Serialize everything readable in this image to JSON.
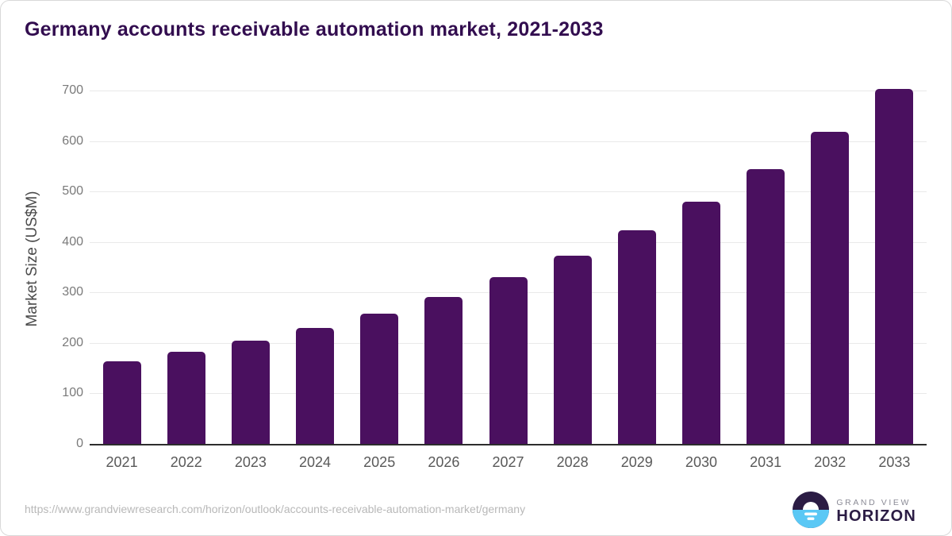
{
  "title": "Germany accounts receivable automation market, 2021-2033",
  "chart_data": {
    "type": "bar",
    "title": "Germany accounts receivable automation market, 2021-2033",
    "categories": [
      "2021",
      "2022",
      "2023",
      "2024",
      "2025",
      "2026",
      "2027",
      "2028",
      "2029",
      "2030",
      "2031",
      "2032",
      "2033"
    ],
    "values": [
      164,
      183,
      205,
      230,
      258,
      291,
      330,
      373,
      423,
      480,
      545,
      619,
      703
    ],
    "xlabel": "",
    "ylabel": "Market Size (US$M)",
    "ylim": [
      0,
      700
    ],
    "yticks": [
      0,
      100,
      200,
      300,
      400,
      500,
      600,
      700
    ],
    "grid": "horizontal",
    "legend": "none",
    "bar_color": "#4a105f"
  },
  "footer": {
    "source_url": "https://www.grandviewresearch.com/horizon/outlook/accounts-receivable-automation-market/germany",
    "logo_line1": "GRAND VIEW",
    "logo_line2": "HORIZON"
  },
  "colors": {
    "title_text": "#320d4f",
    "bar": "#4a105f",
    "axis_line": "#2d2d2d",
    "gridline": "#e9e9e9",
    "y_tick_label": "#7a7a7a",
    "x_tick_label": "#595959",
    "y_axis_label": "#4a4a4a",
    "source_text": "#b8b8b8",
    "logo_dark": "#2b1c44",
    "logo_blue": "#5ac8f5",
    "logo_gray_text": "#8b8b96"
  }
}
